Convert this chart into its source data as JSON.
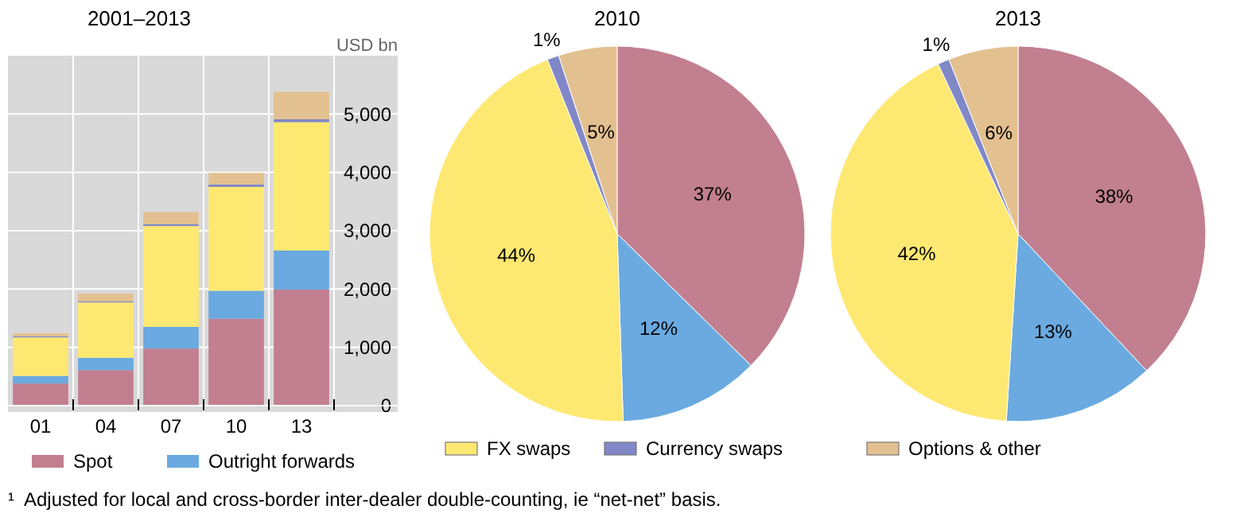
{
  "chart_data": [
    {
      "type": "bar",
      "title": "2001–2013",
      "ylabel": "USD bn",
      "categories": [
        "01",
        "04",
        "07",
        "10",
        "13"
      ],
      "stacked": true,
      "grid": true,
      "legend": "bottom",
      "ylim": [
        0,
        6000
      ],
      "yticks": [
        {
          "value": 0,
          "label": "0"
        },
        {
          "value": 1000,
          "label": "1,000"
        },
        {
          "value": 2000,
          "label": "2,000"
        },
        {
          "value": 3000,
          "label": "3,000"
        },
        {
          "value": 4000,
          "label": "4,000"
        },
        {
          "value": 5000,
          "label": "5,000"
        }
      ],
      "series": [
        {
          "name": "Spot",
          "color": "#c17f8f",
          "values": [
            380,
            610,
            980,
            1490,
            1990
          ]
        },
        {
          "name": "Outright forwards",
          "color": "#6aaae0",
          "values": [
            130,
            210,
            370,
            480,
            670
          ]
        },
        {
          "name": "FX swaps",
          "color": "#fde872",
          "values": [
            660,
            950,
            1730,
            1780,
            2200
          ]
        },
        {
          "name": "Currency swaps",
          "color": "#8088c8",
          "values": [
            20,
            20,
            30,
            40,
            50
          ]
        },
        {
          "name": "Options & other",
          "color": "#e3c090",
          "values": [
            50,
            130,
            210,
            200,
            470
          ]
        }
      ],
      "annotations": [
        "¹  Adjusted for local and cross-border inter-dealer double-counting, ie “net-net” basis."
      ]
    },
    {
      "type": "pie",
      "title": "2010",
      "categories": [
        null,
        null,
        null,
        null,
        null
      ],
      "values": [
        37,
        12,
        44,
        1,
        5
      ],
      "value_labels": [
        "37%",
        "12%",
        "44%",
        "1%",
        "5%"
      ],
      "colors": [
        "#c17f8f",
        "#6aaae0",
        "#fde872",
        "#8088c8",
        "#e3c090"
      ]
    },
    {
      "type": "pie",
      "title": "2013",
      "categories": [
        null,
        null,
        null,
        null,
        null
      ],
      "values": [
        38,
        13,
        42,
        1,
        6
      ],
      "value_labels": [
        "38%",
        "13%",
        "42%",
        "1%",
        "6%"
      ],
      "colors": [
        "#c17f8f",
        "#6aaae0",
        "#fde872",
        "#8088c8",
        "#e3c090"
      ]
    }
  ]
}
